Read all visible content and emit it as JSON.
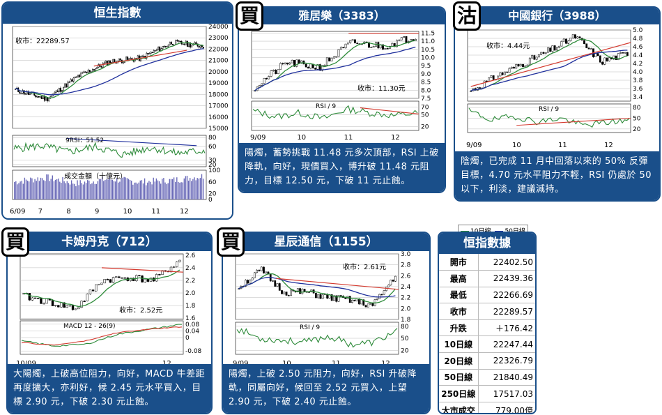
{
  "hsi": {
    "title": "恒生指數",
    "close_label": "收市：22289.57",
    "rsi_label": "9RSI：51.52",
    "volume_label": "成交金額（十億元）",
    "price_ticks": [
      "24000",
      "23000",
      "22000",
      "21000",
      "20000",
      "19000",
      "18000",
      "17000",
      "16000",
      "15000"
    ],
    "rsi_ticks": [
      "80",
      "60",
      "30",
      "20"
    ],
    "vol_ticks": [
      "100",
      "60",
      "20",
      "0"
    ],
    "x_ticks": [
      "6/09",
      "7",
      "8",
      "9",
      "10",
      "11",
      "12"
    ]
  },
  "yahoo": {
    "badge": "買",
    "title": "雅居樂（3383）",
    "close_label": "收市：11.30元",
    "rsi_label": "RSI / 9",
    "price_ticks": [
      "11.5",
      "11.0",
      "10.5",
      "10.0",
      "9.5",
      "9.0",
      "8.5",
      "8.0",
      "7.5"
    ],
    "rsi_ticks": [
      "70",
      "50",
      "20"
    ],
    "x_ticks": [
      "9/09",
      "10",
      "11",
      "12"
    ],
    "comment": "陽燭，蓄勢挑戰 11.48 元多次頂部，RSI 上破降軌，向好，現價買入，博升破 11.48 元阻力，目標 12.50 元，下破 11 元止蝕。"
  },
  "boc": {
    "badge": "沽",
    "title": "中國銀行（3988）",
    "close_label": "收市：4.44元",
    "rsi_label": "RSI / 9",
    "price_ticks": [
      "5.0",
      "4.8",
      "4.6",
      "4.4",
      "4.2",
      "4.0",
      "3.8",
      "3.6",
      "3.4"
    ],
    "rsi_ticks": [
      "80",
      "50",
      "20"
    ],
    "x_ticks": [
      "9/09",
      "10",
      "11",
      "12"
    ],
    "comment": "陰燭，已完成 11 月中回落以來的 50% 反彈目標，4.70 元水平阻力不輕，RSI 仍處於 50 以下，利淡，建議減持。"
  },
  "legend": {
    "ma10": "10日線",
    "ma50": "50日線"
  },
  "colors": {
    "brand": "#1a4f8a",
    "ma10": "#2e8b3a",
    "ma50": "#1f2f9c",
    "trend": "#d43a2f"
  },
  "cam": {
    "badge": "買",
    "title": "卡姆丹克（712）",
    "close_label": "收市：2.52元",
    "macd_label": "MACD 12 - 26(9)",
    "price_ticks": [
      "2.6",
      "2.4",
      "2.2",
      "2.0",
      "1.8",
      "1.6"
    ],
    "macd_ticks": [
      "0.08",
      "0.04",
      "0",
      "-0.08"
    ],
    "x_ticks": [
      "10/09",
      "12"
    ],
    "comment": "大陽燭，上破高位阻力，向好，MACD 牛差距再度擴大，亦利好，候 2.45 元水平買入，目標 2.90 元，下破 2.30 元止蝕。"
  },
  "star": {
    "badge": "買",
    "title": "星辰通信（1155）",
    "close_label": "收市：2.61元",
    "rsi_label": "RSI / 9",
    "price_ticks": [
      "3.0",
      "2.8",
      "2.6",
      "2.4",
      "2.2",
      "2.0",
      "1.8"
    ],
    "rsi_ticks": [
      "80",
      "50",
      "20"
    ],
    "x_ticks": [
      "9/09",
      "10",
      "11",
      "12"
    ],
    "comment": "陽燭，上破 2.50 元阻力，向好，RSI 升破降軌，同屬向好，候回至 2.52 元買入，上望 2.90 元，下破 2.40 元止蝕。"
  },
  "stats": {
    "title": "恒指數據",
    "rows": [
      {
        "k": "開市",
        "v": "22402.50"
      },
      {
        "k": "最高",
        "v": "22439.36"
      },
      {
        "k": "最低",
        "v": "22266.69"
      },
      {
        "k": "收市",
        "v": "22289.57"
      },
      {
        "k": "升跌",
        "v": "＋176.42"
      },
      {
        "k": "10日線",
        "v": "22247.44"
      },
      {
        "k": "20日線",
        "v": "22326.79"
      },
      {
        "k": "50日線",
        "v": "21840.49"
      },
      {
        "k": "250日線",
        "v": "17517.03"
      },
      {
        "k": "大市成交",
        "v": "779.00億"
      }
    ]
  },
  "chart_data": [
    {
      "type": "line",
      "title": "恒生指數",
      "ylim": [
        15000,
        24000
      ],
      "x": [
        "6/09",
        "7",
        "8",
        "9",
        "10",
        "11",
        "12"
      ],
      "series": [
        {
          "name": "收市",
          "values": [
            18400,
            18000,
            19800,
            20800,
            21700,
            22600,
            22290
          ]
        }
      ]
    },
    {
      "type": "line",
      "title": "雅居樂（3383）",
      "ylim": [
        7.5,
        11.5
      ],
      "x": [
        "9/09",
        "10",
        "11",
        "12"
      ],
      "series": [
        {
          "name": "收市",
          "values": [
            8.4,
            9.6,
            10.9,
            11.3
          ]
        }
      ]
    },
    {
      "type": "line",
      "title": "中國銀行（3988）",
      "ylim": [
        3.4,
        5.0
      ],
      "x": [
        "9/09",
        "10",
        "11",
        "12"
      ],
      "series": [
        {
          "name": "收市",
          "values": [
            3.6,
            4.0,
            4.7,
            4.44
          ]
        }
      ]
    },
    {
      "type": "line",
      "title": "卡姆丹克（712）",
      "ylim": [
        1.6,
        2.6
      ],
      "x": [
        "10/09",
        "12"
      ],
      "series": [
        {
          "name": "收市",
          "values": [
            2.1,
            2.52
          ]
        }
      ]
    },
    {
      "type": "line",
      "title": "星辰通信（1155）",
      "ylim": [
        1.8,
        3.0
      ],
      "x": [
        "9/09",
        "10",
        "11",
        "12"
      ],
      "series": [
        {
          "name": "收市",
          "values": [
            2.5,
            2.3,
            2.2,
            2.61
          ]
        }
      ]
    }
  ]
}
